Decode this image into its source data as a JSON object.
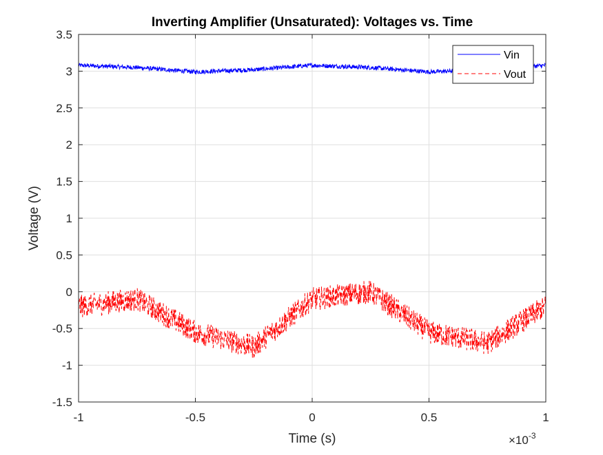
{
  "chart_data": {
    "type": "line",
    "title": "Inverting Amplifier (Unsaturated): Voltages vs. Time",
    "xlabel": "Time (s)",
    "ylabel": "Voltage (V)",
    "x_exponent_label": "×10",
    "x_exponent_power": "-3",
    "x_scale_factor": 0.001,
    "xlim": [
      -0.001,
      0.001
    ],
    "ylim": [
      -1.5,
      3.5
    ],
    "xticks": [
      -1,
      -0.5,
      0,
      0.5,
      1
    ],
    "xtick_labels": [
      "-1",
      "-0.5",
      "0",
      "0.5",
      "1"
    ],
    "yticks": [
      -1.5,
      -1,
      -0.5,
      0,
      0.5,
      1,
      1.5,
      2,
      2.5,
      3,
      3.5
    ],
    "ytick_labels": [
      "-1.5",
      "-1",
      "-0.5",
      "0",
      "0.5",
      "1",
      "1.5",
      "2",
      "2.5",
      "3",
      "3.5"
    ],
    "grid": true,
    "legend_position": "top-right",
    "series": [
      {
        "name": "Vin",
        "color": "#0000ff",
        "line_style": "solid",
        "x": [
          -0.001,
          -0.00075,
          -0.0005,
          -0.00025,
          0,
          0.00025,
          0.0005,
          0.00075,
          0.001
        ],
        "y": [
          3.08,
          3.05,
          2.99,
          3.02,
          3.08,
          3.05,
          2.99,
          3.02,
          3.08
        ],
        "noise_band": 0.06
      },
      {
        "name": "Vout",
        "color": "#ff0000",
        "line_style": "dashed",
        "x": [
          -0.001,
          -0.00075,
          -0.0005,
          -0.00025,
          0,
          0.00025,
          0.0005,
          0.00075,
          0.001
        ],
        "y": [
          -0.2,
          -0.1,
          -0.55,
          -0.75,
          -0.1,
          0.0,
          -0.55,
          -0.7,
          -0.2
        ],
        "noise_band": 0.32
      }
    ]
  }
}
